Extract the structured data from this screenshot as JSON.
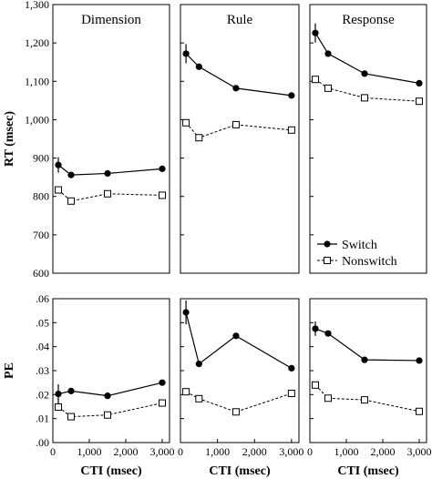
{
  "chart_data": [
    {
      "type": "line",
      "title": "Dimension",
      "xlabel": "",
      "ylabel": "RT (msec)",
      "xlim": [
        0,
        3200
      ],
      "ylim": [
        600,
        1300
      ],
      "y_ticks": [
        "600",
        "700",
        "800",
        "900",
        "1,000",
        "1,100",
        "1,200",
        "1,300"
      ],
      "x_ticks": [],
      "series": [
        {
          "name": "Switch",
          "x": [
            150,
            500,
            1500,
            3000
          ],
          "y": [
            882,
            856,
            860,
            872
          ],
          "err": [
            20,
            0,
            0,
            0
          ]
        },
        {
          "name": "Nonswitch",
          "x": [
            150,
            500,
            1500,
            3000
          ],
          "y": [
            817,
            788,
            807,
            803
          ]
        }
      ]
    },
    {
      "type": "line",
      "title": "Rule",
      "xlabel": "",
      "ylabel": "",
      "xlim": [
        0,
        3200
      ],
      "ylim": [
        600,
        1300
      ],
      "x_ticks": [],
      "series": [
        {
          "name": "Switch",
          "x": [
            150,
            500,
            1500,
            3000
          ],
          "y": [
            1172,
            1138,
            1082,
            1063
          ],
          "err": [
            25,
            0,
            0,
            0
          ]
        },
        {
          "name": "Nonswitch",
          "x": [
            150,
            500,
            1500,
            3000
          ],
          "y": [
            992,
            953,
            987,
            973
          ]
        }
      ]
    },
    {
      "type": "line",
      "title": "Response",
      "xlabel": "",
      "ylabel": "",
      "xlim": [
        0,
        3200
      ],
      "ylim": [
        600,
        1300
      ],
      "x_ticks": [],
      "legend": {
        "placement": "bottom-right",
        "entries": [
          "Switch",
          "Nonswitch"
        ]
      },
      "series": [
        {
          "name": "Switch",
          "x": [
            150,
            500,
            1500,
            3000
          ],
          "y": [
            1226,
            1172,
            1120,
            1095
          ],
          "err": [
            25,
            0,
            0,
            0
          ]
        },
        {
          "name": "Nonswitch",
          "x": [
            150,
            500,
            1500,
            3000
          ],
          "y": [
            1105,
            1082,
            1057,
            1048
          ]
        }
      ]
    },
    {
      "type": "line",
      "title": "",
      "xlabel": "CTI (msec)",
      "ylabel": "PE",
      "xlim": [
        0,
        3200
      ],
      "ylim": [
        0,
        0.06
      ],
      "y_ticks": [
        ".00",
        ".01",
        ".02",
        ".03",
        ".04",
        ".05",
        ".06"
      ],
      "x_ticks": [
        "0",
        "1,000",
        "2,000",
        "3,000"
      ],
      "series": [
        {
          "name": "Switch",
          "x": [
            150,
            500,
            1500,
            3000
          ],
          "y": [
            0.0203,
            0.0215,
            0.0195,
            0.025
          ],
          "err": [
            0.004,
            0,
            0,
            0
          ]
        },
        {
          "name": "Nonswitch",
          "x": [
            150,
            500,
            1500,
            3000
          ],
          "y": [
            0.0148,
            0.0108,
            0.0115,
            0.0165
          ]
        }
      ]
    },
    {
      "type": "line",
      "title": "",
      "xlabel": "CTI (msec)",
      "ylabel": "",
      "xlim": [
        0,
        3200
      ],
      "ylim": [
        0,
        0.06
      ],
      "x_ticks": [
        "0",
        "1,000",
        "2,000",
        "3,000"
      ],
      "series": [
        {
          "name": "Switch",
          "x": [
            150,
            500,
            1500,
            3000
          ],
          "y": [
            0.0543,
            0.0328,
            0.0445,
            0.031
          ],
          "err": [
            0.005,
            0,
            0,
            0
          ]
        },
        {
          "name": "Nonswitch",
          "x": [
            150,
            500,
            1500,
            3000
          ],
          "y": [
            0.0212,
            0.0183,
            0.0128,
            0.0205
          ]
        }
      ]
    },
    {
      "type": "line",
      "title": "",
      "xlabel": "CTI (msec)",
      "ylabel": "",
      "xlim": [
        0,
        3200
      ],
      "ylim": [
        0,
        0.06
      ],
      "x_ticks": [
        "0",
        "1,000",
        "2,000",
        "3,000"
      ],
      "series": [
        {
          "name": "Switch",
          "x": [
            150,
            500,
            1500,
            3000
          ],
          "y": [
            0.0475,
            0.0455,
            0.0345,
            0.0342
          ],
          "err": [
            0.003,
            0,
            0,
            0
          ]
        },
        {
          "name": "Nonswitch",
          "x": [
            150,
            500,
            1500,
            3000
          ],
          "y": [
            0.024,
            0.0185,
            0.0178,
            0.013
          ]
        }
      ]
    }
  ]
}
